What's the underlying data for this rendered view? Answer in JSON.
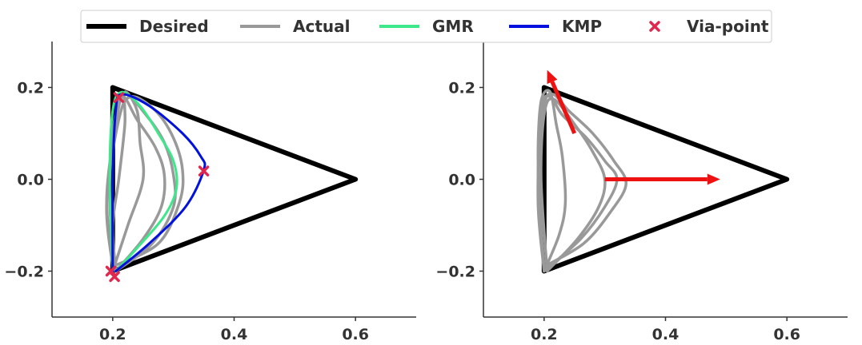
{
  "legend": {
    "placement": "top-center",
    "entries": [
      {
        "label": "Desired",
        "color": "#000000",
        "kind": "line"
      },
      {
        "label": "Actual",
        "color": "#999999",
        "kind": "line"
      },
      {
        "label": "GMR",
        "color": "#3de88a",
        "kind": "line"
      },
      {
        "label": "KMP",
        "color": "#0011dd",
        "kind": "line"
      },
      {
        "label": "Via-point",
        "color": "#e0284f",
        "kind": "marker-x"
      }
    ]
  },
  "chart_data": [
    {
      "type": "line",
      "xlim": [
        0.1,
        0.7
      ],
      "ylim": [
        -0.3,
        0.3
      ],
      "x_ticks": [
        0.2,
        0.4,
        0.6
      ],
      "x_tick_labels": [
        "0.2",
        "0.4",
        "0.6"
      ],
      "y_ticks": [
        -0.2,
        0.0,
        0.2
      ],
      "y_tick_labels": [
        "−0.2",
        "0.0",
        "0.2"
      ],
      "grid": false,
      "series": [
        {
          "name": "Desired",
          "color": "#000000",
          "x": [
            0.2,
            0.6,
            0.2,
            0.2
          ],
          "y": [
            0.2,
            0.0,
            -0.2,
            0.2
          ]
        },
        {
          "name": "Actual",
          "color": "#999999",
          "x": [
            0.205,
            0.2,
            0.21,
            0.22,
            0.22,
            0.24,
            0.245,
            0.25,
            0.225,
            0.2
          ],
          "y": [
            -0.2,
            -0.1,
            0.0,
            0.12,
            0.19,
            0.15,
            0.08,
            0.0,
            -0.1,
            -0.2
          ]
        },
        {
          "name": "Actual",
          "color": "#999999",
          "x": [
            0.205,
            0.195,
            0.2,
            0.215,
            0.24,
            0.27,
            0.285,
            0.28,
            0.25,
            0.205
          ],
          "y": [
            -0.2,
            -0.05,
            0.1,
            0.18,
            0.13,
            0.07,
            0.01,
            -0.06,
            -0.13,
            -0.2
          ]
        },
        {
          "name": "Actual",
          "color": "#999999",
          "x": [
            0.205,
            0.19,
            0.205,
            0.22,
            0.255,
            0.285,
            0.3,
            0.3,
            0.265,
            0.205
          ],
          "y": [
            -0.2,
            -0.05,
            0.12,
            0.185,
            0.14,
            0.08,
            0.01,
            -0.06,
            -0.14,
            -0.2
          ]
        },
        {
          "name": "Actual",
          "color": "#999999",
          "x": [
            0.2,
            0.19,
            0.21,
            0.23,
            0.27,
            0.3,
            0.315,
            0.31,
            0.275,
            0.2
          ],
          "y": [
            -0.19,
            -0.05,
            0.13,
            0.18,
            0.15,
            0.09,
            0.02,
            -0.05,
            -0.14,
            -0.19
          ]
        },
        {
          "name": "GMR",
          "color": "#3de88a",
          "x": [
            0.2,
            0.195,
            0.2,
            0.215,
            0.245,
            0.275,
            0.3,
            0.305,
            0.285,
            0.24,
            0.205
          ],
          "y": [
            -0.2,
            0.0,
            0.15,
            0.19,
            0.16,
            0.1,
            0.04,
            -0.02,
            -0.08,
            -0.15,
            -0.2
          ]
        },
        {
          "name": "KMP",
          "color": "#0011dd",
          "x": [
            0.2,
            0.2,
            0.205,
            0.215,
            0.26,
            0.315,
            0.345,
            0.35,
            0.32,
            0.26,
            0.205
          ],
          "y": [
            -0.2,
            0.0,
            0.15,
            0.185,
            0.16,
            0.1,
            0.05,
            0.02,
            -0.06,
            -0.14,
            -0.2
          ]
        }
      ],
      "via_points": {
        "name": "Via-point",
        "color": "#e0284f",
        "x": [
          0.35,
          0.197,
          0.203,
          0.21
        ],
        "y": [
          0.018,
          -0.2,
          -0.212,
          0.178
        ]
      }
    },
    {
      "type": "line",
      "xlim": [
        0.1,
        0.7
      ],
      "ylim": [
        -0.3,
        0.3
      ],
      "x_ticks": [
        0.2,
        0.4,
        0.6
      ],
      "x_tick_labels": [
        "0.2",
        "0.4",
        "0.6"
      ],
      "y_ticks": [
        -0.2,
        0.0,
        0.2
      ],
      "y_tick_labels": [
        "−0.2",
        "0.0",
        "0.2"
      ],
      "grid": false,
      "series": [
        {
          "name": "Desired",
          "color": "#000000",
          "x": [
            0.2,
            0.6,
            0.2,
            0.2
          ],
          "y": [
            0.2,
            0.0,
            -0.2,
            0.2
          ]
        },
        {
          "name": "Actual",
          "color": "#999999",
          "x": [
            0.2,
            0.195,
            0.19,
            0.195,
            0.21,
            0.22,
            0.23,
            0.235,
            0.225,
            0.2
          ],
          "y": [
            -0.2,
            -0.1,
            0.05,
            0.17,
            0.19,
            0.12,
            0.05,
            -0.05,
            -0.12,
            -0.2
          ]
        },
        {
          "name": "Actual",
          "color": "#999999",
          "x": [
            0.2,
            0.19,
            0.195,
            0.21,
            0.23,
            0.27,
            0.3,
            0.32,
            0.3,
            0.26,
            0.2
          ],
          "y": [
            -0.2,
            -0.05,
            0.15,
            0.18,
            0.14,
            0.09,
            0.04,
            0.0,
            -0.06,
            -0.13,
            -0.2
          ]
        },
        {
          "name": "Actual",
          "color": "#999999",
          "x": [
            0.2,
            0.19,
            0.2,
            0.215,
            0.24,
            0.28,
            0.315,
            0.335,
            0.31,
            0.265,
            0.2
          ],
          "y": [
            -0.19,
            0.0,
            0.16,
            0.185,
            0.15,
            0.1,
            0.04,
            -0.01,
            -0.07,
            -0.14,
            -0.19
          ]
        },
        {
          "name": "Actual",
          "color": "#999999",
          "x": [
            0.205,
            0.195,
            0.2,
            0.215,
            0.25,
            0.28,
            0.3,
            0.29,
            0.255,
            0.205
          ],
          "y": [
            -0.2,
            0.0,
            0.14,
            0.175,
            0.12,
            0.06,
            0.0,
            -0.06,
            -0.13,
            -0.2
          ]
        }
      ],
      "arrows": [
        {
          "x": [
            0.25,
            0.205
          ],
          "y": [
            0.1,
            0.238
          ],
          "color": "#ee1111"
        },
        {
          "x": [
            0.3,
            0.49
          ],
          "y": [
            0.0,
            0.0
          ],
          "color": "#ee1111"
        }
      ]
    }
  ]
}
